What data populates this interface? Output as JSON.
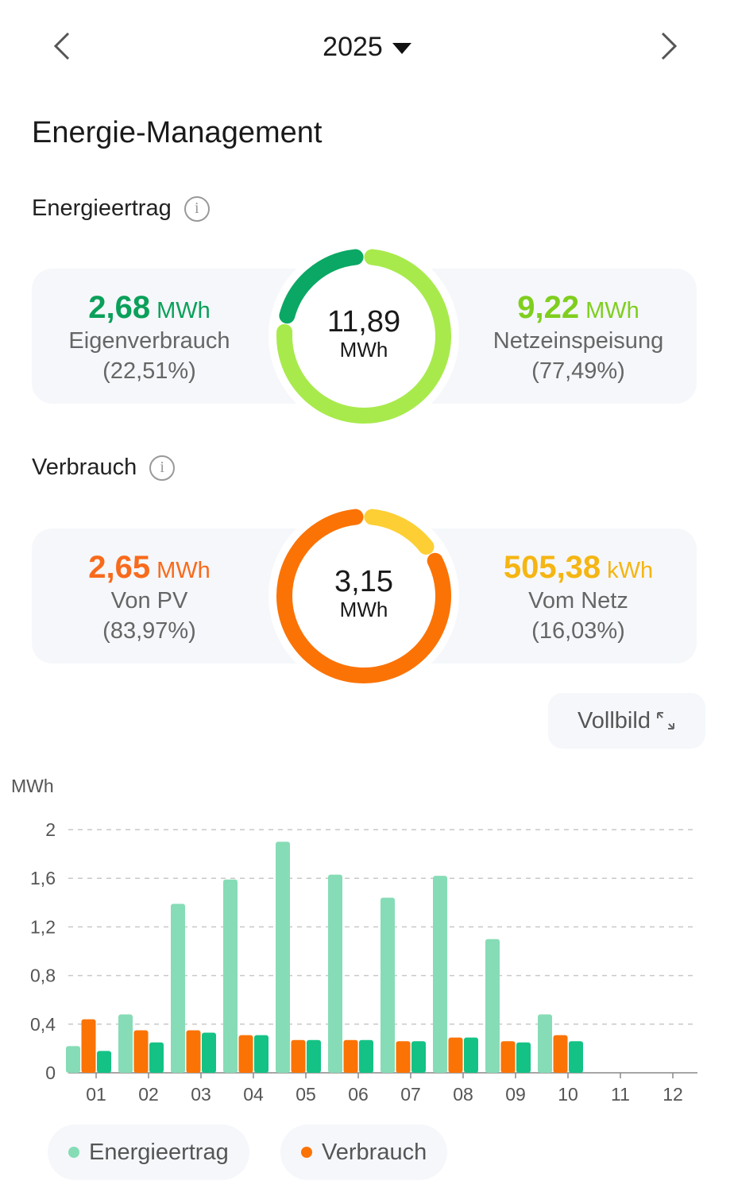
{
  "header": {
    "year": "2025",
    "prev_icon": "chevron-left-icon",
    "next_icon": "chevron-right-icon"
  },
  "page_title": "Energie-Management",
  "energieertrag": {
    "label": "Energieertrag",
    "total_value": "11,89",
    "total_unit": "MWh",
    "left": {
      "value": "2,68",
      "unit": "MWh",
      "label": "Eigenverbrauch",
      "percent": "(22,51%)",
      "color": "#0aa05a"
    },
    "right": {
      "value": "9,22",
      "unit": "MWh",
      "label": "Netzeinspeisung",
      "percent": "(77,49%)",
      "color": "#7fce1e"
    },
    "ring_share_left": 22.51,
    "ring_colors": [
      "#0aa864",
      "#a8ea4c"
    ]
  },
  "verbrauch": {
    "label": "Verbrauch",
    "total_value": "3,15",
    "total_unit": "MWh",
    "left": {
      "value": "2,65",
      "unit": "MWh",
      "label": "Von PV",
      "percent": "(83,97%)",
      "color": "#f86a1c"
    },
    "right": {
      "value": "505,38",
      "unit": "kWh",
      "label": "Vom Netz",
      "percent": "(16,03%)",
      "color": "#f5b512"
    },
    "ring_share_left": 83.97,
    "ring_colors": [
      "#fb7305",
      "#fdcf35"
    ]
  },
  "fullscreen_label": "Vollbild",
  "chart_data": {
    "type": "bar",
    "ylabel": "MWh",
    "ylim": [
      0,
      2
    ],
    "yticks": [
      "0",
      "0,4",
      "0,8",
      "1,2",
      "1,6",
      "2"
    ],
    "ytick_values": [
      0,
      0.4,
      0.8,
      1.2,
      1.6,
      2
    ],
    "grid": true,
    "legend_position": "bottom",
    "categories": [
      "01",
      "02",
      "03",
      "04",
      "05",
      "06",
      "07",
      "08",
      "09",
      "10",
      "11",
      "12"
    ],
    "series": [
      {
        "name": "Energieertrag",
        "color": "#86dcb6",
        "values": [
          0.22,
          0.48,
          1.39,
          1.59,
          1.9,
          1.63,
          1.44,
          1.62,
          1.1,
          0.48,
          null,
          null
        ]
      },
      {
        "name": "Verbrauch",
        "color": "#fb7305",
        "values": [
          0.44,
          0.35,
          0.35,
          0.31,
          0.27,
          0.27,
          0.26,
          0.29,
          0.26,
          0.31,
          null,
          null
        ]
      },
      {
        "color": "#14c285",
        "values": [
          0.18,
          0.25,
          0.33,
          0.31,
          0.27,
          0.27,
          0.26,
          0.29,
          0.25,
          0.26,
          null,
          null
        ]
      }
    ]
  }
}
